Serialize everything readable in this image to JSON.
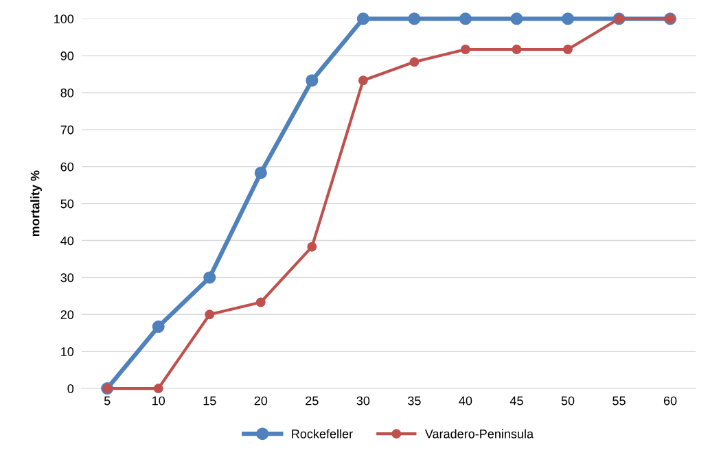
{
  "chart_data": {
    "type": "line",
    "ylabel": "mortality %",
    "categories": [
      "5",
      "10",
      "15",
      "20",
      "25",
      "30",
      "35",
      "40",
      "45",
      "50",
      "55",
      "60"
    ],
    "series": [
      {
        "name": "Rockefeller",
        "color": "#4f81bd",
        "values": [
          0,
          16.7,
          30,
          58.3,
          83.3,
          100,
          100,
          100,
          100,
          100,
          100,
          100
        ]
      },
      {
        "name": "Varadero-Peninsula",
        "color": "#c0504d",
        "values": [
          0,
          0,
          20,
          23.3,
          38.3,
          83.3,
          88.3,
          91.7,
          91.7,
          91.7,
          100,
          100
        ]
      }
    ],
    "ylim": [
      0,
      100
    ],
    "yticks": [
      0,
      10,
      20,
      30,
      40,
      50,
      60,
      70,
      80,
      90,
      100
    ],
    "grid": "y",
    "legend": "bottom",
    "marker": "circle",
    "line_style": "solid"
  }
}
